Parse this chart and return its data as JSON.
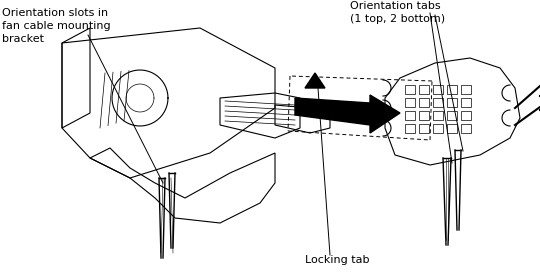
{
  "bg_color": "#ffffff",
  "line_color": "#000000",
  "label_left_lines": [
    "Orientation slots in",
    "fan cable mounting",
    "bracket"
  ],
  "label_right_lines": [
    "Orientation tabs",
    "(1 top, 2 bottom)"
  ],
  "label_bottom": "Locking tab",
  "fig_width": 5.4,
  "fig_height": 2.73,
  "dpi": 100
}
